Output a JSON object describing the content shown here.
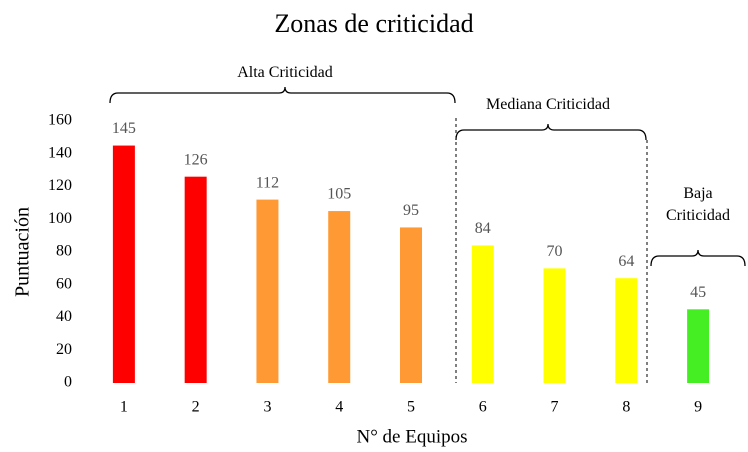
{
  "chart_data": {
    "type": "bar",
    "title": "Zonas de criticidad",
    "x_label": "N° de Equipos",
    "y_label": "Puntuación",
    "categories": [
      "1",
      "2",
      "3",
      "4",
      "5",
      "6",
      "7",
      "8",
      "9"
    ],
    "values": [
      145,
      126,
      112,
      105,
      95,
      84,
      70,
      64,
      45
    ],
    "colors": [
      "#ff0000",
      "#ff0000",
      "#ff9933",
      "#ff9933",
      "#ff9933",
      "#ffff00",
      "#ffff00",
      "#ffff00",
      "#44ee22"
    ],
    "ylim": [
      0,
      160
    ],
    "yticks": [
      0,
      20,
      40,
      60,
      80,
      100,
      120,
      140,
      160
    ],
    "grid": false,
    "annotations": [
      "Alta Criticidad",
      "Mediana Criticidad",
      "Baja Criticidad"
    ]
  }
}
